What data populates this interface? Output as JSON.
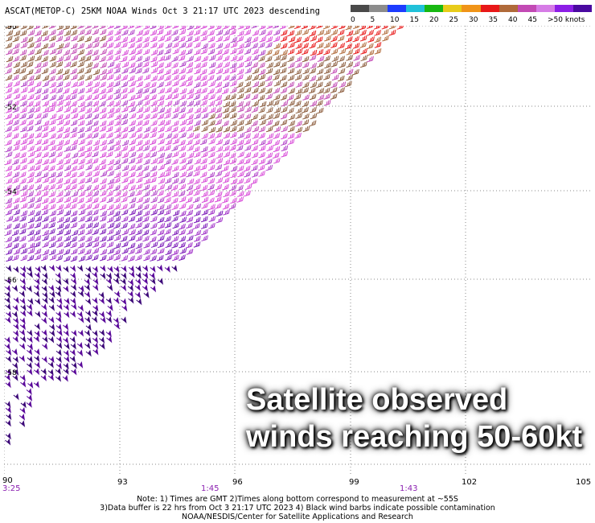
{
  "header": {
    "title": "ASCAT(METOP-C) 25KM NOAA Winds  Oct  3 21:17 UTC 2023 descending"
  },
  "colorbar": {
    "labels": [
      "0",
      "5",
      "10",
      "15",
      "20",
      "25",
      "30",
      "35",
      "40",
      "45",
      ">50 knots"
    ],
    "colors": [
      "#4a4a4a",
      "#8c8c8c",
      "#1d3cff",
      "#21c1d9",
      "#18b812",
      "#e8cc1a",
      "#f09418",
      "#e81818",
      "#b06a3a",
      "#c24ab4",
      "#d67ce6",
      "#8c1ee6",
      "#4a0aa0"
    ]
  },
  "axes": {
    "lon_labels": [
      "90",
      "93",
      "96",
      "99",
      "102",
      "105"
    ],
    "lat_labels": [
      "-50",
      "-52",
      "-54",
      "-56",
      "-58",
      "-60"
    ],
    "time_labels": [
      "3:25",
      "1:45",
      "1:43"
    ]
  },
  "notes": {
    "line1": "Note: 1) Times are GMT 2)Times along bottom correspond to measurement at ~55S",
    "line2": "3)Data buffer is 22 hrs from Oct  3 21:17 UTC 2023 4) Black wind barbs indicate possible contamination",
    "line3": "NOAA/NESDIS/Center for Satellite Applications and Research"
  },
  "overlay": {
    "line1": "Satellite observed",
    "line2": "winds reaching 50-60kt"
  }
}
